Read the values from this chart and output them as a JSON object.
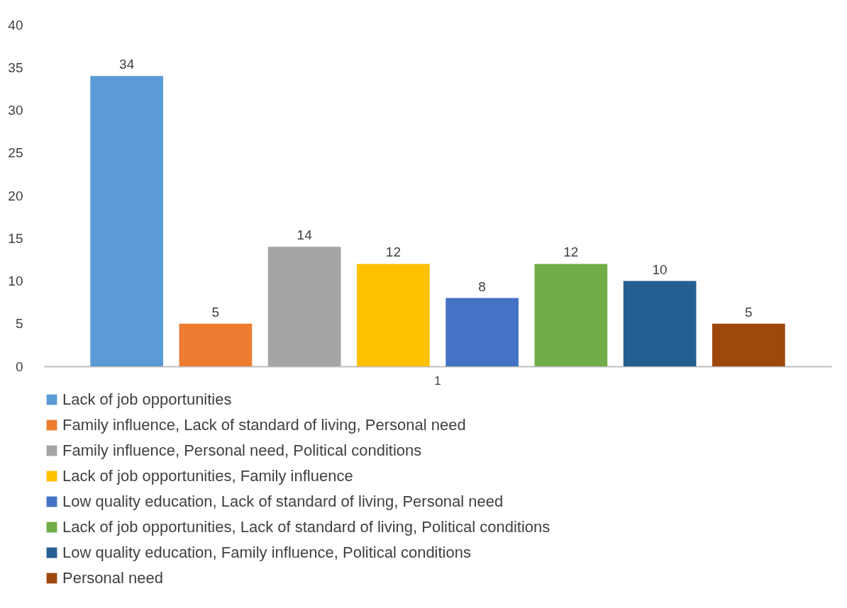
{
  "chart_data": {
    "type": "bar",
    "categories": [
      "1"
    ],
    "series": [
      {
        "name": "Lack of job opportunities",
        "color": "#5b9bd5",
        "values": [
          34
        ]
      },
      {
        "name": "Family influence, Lack of standard of living, Personal need",
        "color": "#ed7d31",
        "values": [
          5
        ]
      },
      {
        "name": "Family influence, Personal need, Political conditions",
        "color": "#a5a5a5",
        "values": [
          14
        ]
      },
      {
        "name": "Lack of job opportunities, Family influence",
        "color": "#ffc000",
        "values": [
          12
        ]
      },
      {
        "name": "Low quality education, Lack of standard of living, Personal need",
        "color": "#4472c4",
        "values": [
          8
        ]
      },
      {
        "name": "Lack of job opportunities, Lack of standard of living, Political conditions",
        "color": "#70ad47",
        "values": [
          12
        ]
      },
      {
        "name": "Low quality education, Family influence, Political conditions",
        "color": "#255e91",
        "values": [
          10
        ]
      },
      {
        "name": "Personal need",
        "color": "#9e480e",
        "values": [
          5
        ]
      }
    ],
    "ylim": [
      0,
      40
    ],
    "yticks": [
      0,
      5,
      10,
      15,
      20,
      25,
      30,
      35,
      40
    ],
    "grid": false,
    "legend": "bottom",
    "data_labels": true
  }
}
